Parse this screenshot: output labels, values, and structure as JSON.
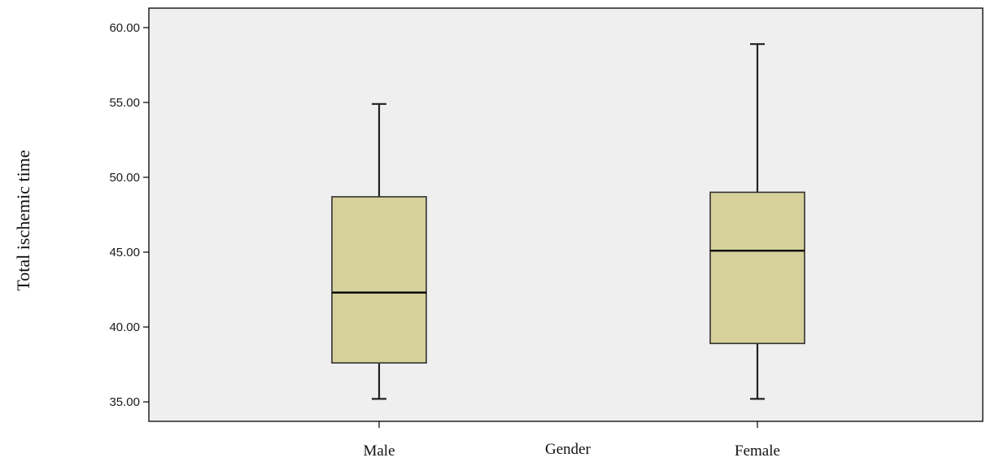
{
  "chart_data": {
    "type": "boxplot",
    "xlabel": "Gender",
    "ylabel": "Total ischemic time",
    "categories": [
      "Male",
      "Female"
    ],
    "boxes": [
      {
        "category": "Male",
        "min": 35.2,
        "q1": 37.6,
        "median": 42.3,
        "q3": 48.7,
        "max": 54.9
      },
      {
        "category": "Female",
        "min": 35.2,
        "q1": 38.9,
        "median": 45.1,
        "q3": 49.0,
        "max": 58.9
      }
    ],
    "yticks": [
      "35.00",
      "40.00",
      "45.00",
      "50.00",
      "55.00",
      "60.00"
    ],
    "ylim": [
      33.7,
      61.3
    ],
    "grid": false,
    "colors": {
      "plot_background": "#efefef",
      "box_fill": "#d6d19b",
      "box_stroke": "#333333",
      "median": "#000000",
      "axis": "#000000"
    }
  }
}
